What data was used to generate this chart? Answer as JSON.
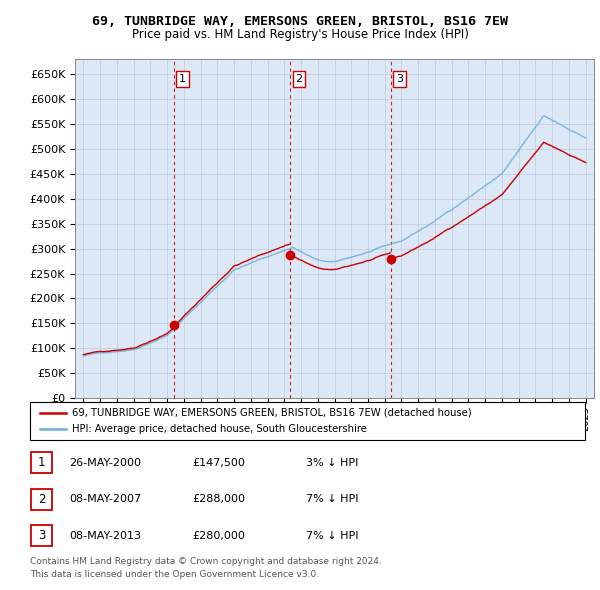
{
  "title": "69, TUNBRIDGE WAY, EMERSONS GREEN, BRISTOL, BS16 7EW",
  "subtitle": "Price paid vs. HM Land Registry's House Price Index (HPI)",
  "legend_line1": "69, TUNBRIDGE WAY, EMERSONS GREEN, BRISTOL, BS16 7EW (detached house)",
  "legend_line2": "HPI: Average price, detached house, South Gloucestershire",
  "footnote1": "Contains HM Land Registry data © Crown copyright and database right 2024.",
  "footnote2": "This data is licensed under the Open Government Licence v3.0.",
  "transactions": [
    {
      "num": 1,
      "date": "26-MAY-2000",
      "price": "£147,500",
      "pct": "3% ↓ HPI"
    },
    {
      "num": 2,
      "date": "08-MAY-2007",
      "price": "£288,000",
      "pct": "7% ↓ HPI"
    },
    {
      "num": 3,
      "date": "08-MAY-2013",
      "price": "£280,000",
      "pct": "7% ↓ HPI"
    }
  ],
  "t_dates": [
    2000.4,
    2007.36,
    2013.36
  ],
  "t_prices": [
    147500,
    288000,
    280000
  ],
  "hpi_color": "#6baed6",
  "price_color": "#cc0000",
  "vline_color": "#cc0000",
  "chart_bg": "#dce8f5",
  "ylim_min": 0,
  "ylim_max": 680000,
  "ytick_max": 650000,
  "xlim_min": 1994.5,
  "xlim_max": 2025.5,
  "background_color": "#ffffff",
  "grid_color": "#bbccdd"
}
